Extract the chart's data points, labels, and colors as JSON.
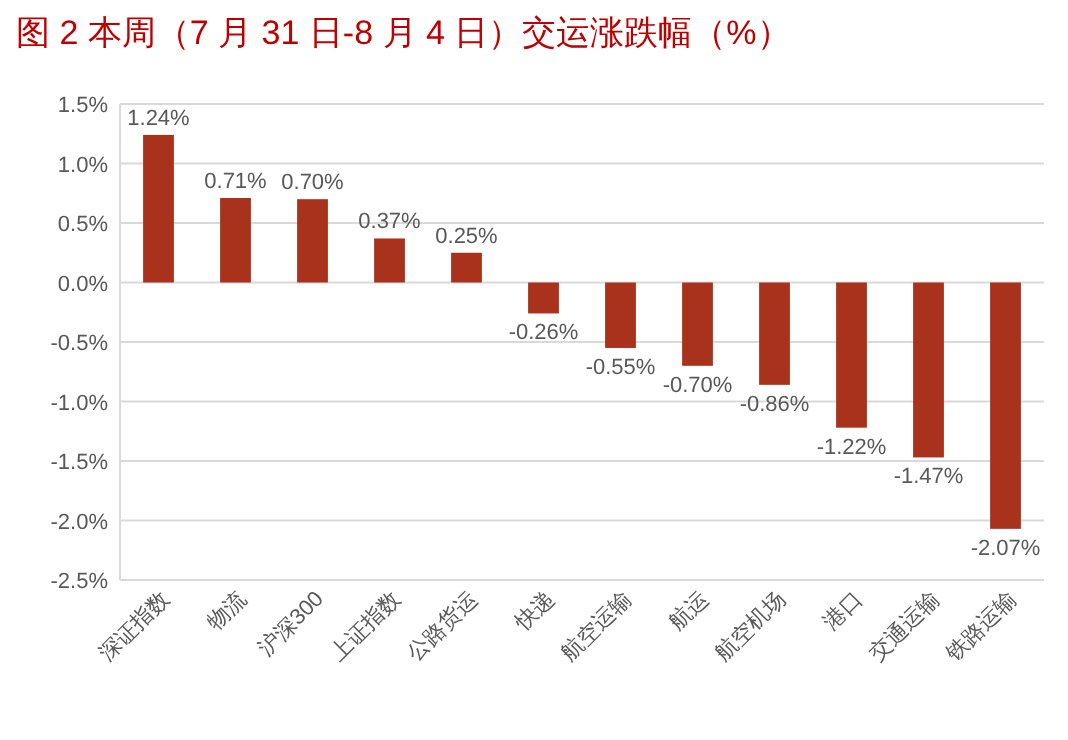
{
  "chart_data": {
    "type": "bar",
    "title": "图 2  本周（7 月 31 日-8 月 4 日）交运涨跌幅（%）",
    "categories": [
      "深证指数",
      "物流",
      "沪深300",
      "上证指数",
      "公路货运",
      "快递",
      "航空运输",
      "航运",
      "航空机场",
      "港口",
      "交通运输",
      "铁路运输"
    ],
    "values": [
      1.24,
      0.71,
      0.7,
      0.37,
      0.25,
      -0.26,
      -0.55,
      -0.7,
      -0.86,
      -1.22,
      -1.47,
      -2.07
    ],
    "value_labels": [
      "1.24%",
      "0.71%",
      "0.70%",
      "0.37%",
      "0.25%",
      "-0.26%",
      "-0.55%",
      "-0.70%",
      "-0.86%",
      "-1.22%",
      "-1.47%",
      "-2.07%"
    ],
    "color": "#a8321b",
    "ylim": [
      -2.5,
      1.5
    ],
    "yticks": [
      {
        "value": -2.5,
        "label": "-2.5%"
      },
      {
        "value": -2.0,
        "label": "-2.0%"
      },
      {
        "value": -1.5,
        "label": "-1.5%"
      },
      {
        "value": -1.0,
        "label": "-1.0%"
      },
      {
        "value": -0.5,
        "label": "-0.5%"
      },
      {
        "value": 0,
        "label": "0.0%"
      },
      {
        "value": 0.5,
        "label": "0.5%"
      },
      {
        "value": 1.0,
        "label": "1.0%"
      },
      {
        "value": 1.5,
        "label": "1.5%"
      }
    ],
    "grid": "y"
  }
}
